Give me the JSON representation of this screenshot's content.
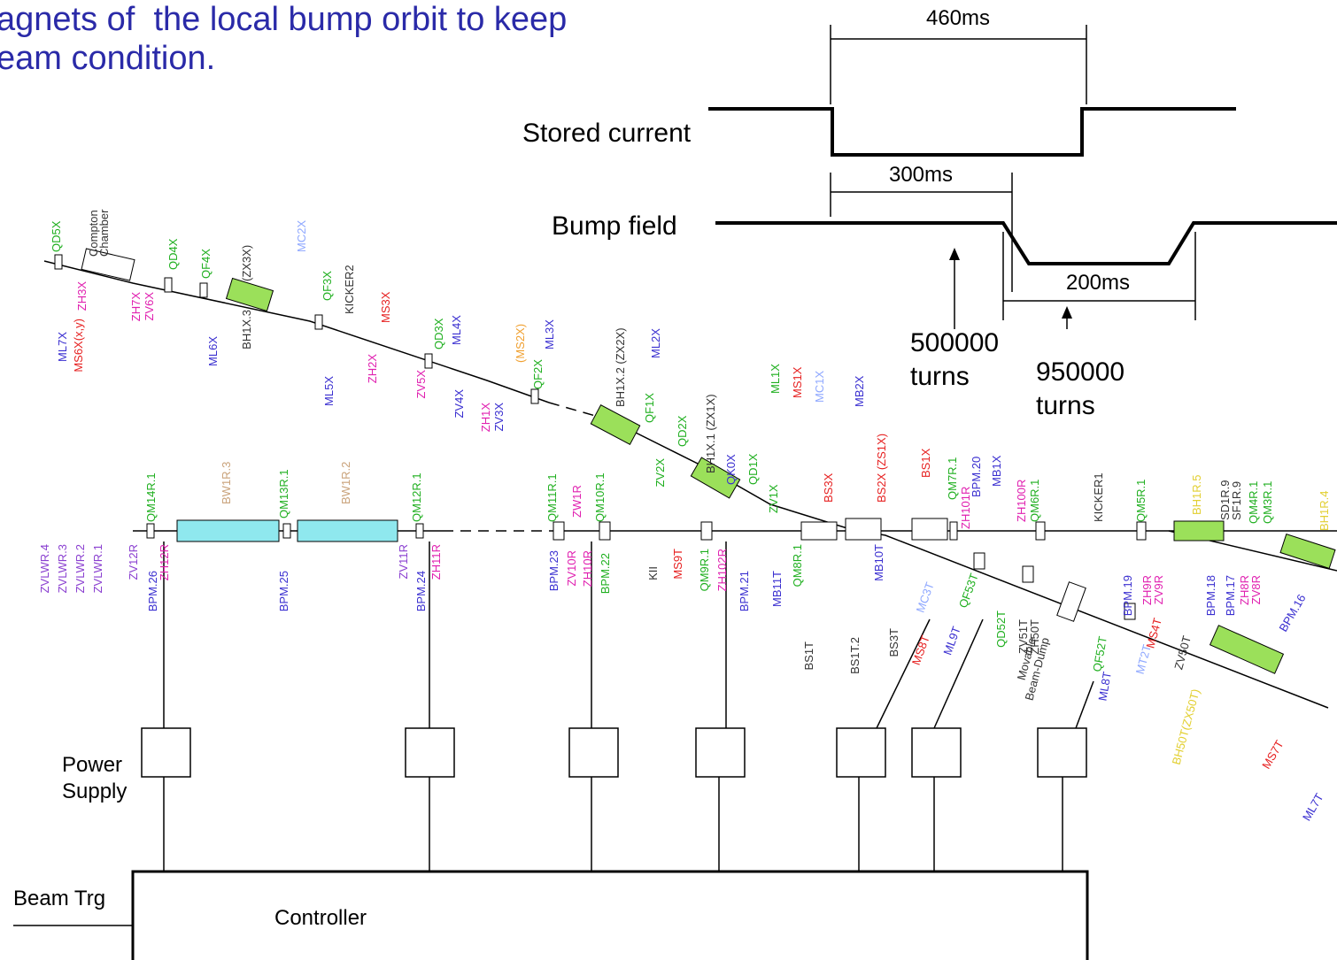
{
  "header": {
    "line1": "agnets of  the local bump orbit to keep",
    "line2": "eam condition."
  },
  "timing": {
    "stored_current": "Stored current",
    "bump_field": "Bump field",
    "t460": "460ms",
    "t300": "300ms",
    "t200": "200ms",
    "turns1": [
      "500000",
      "turns"
    ],
    "turns2": [
      "950000",
      "turns"
    ]
  },
  "bottom": {
    "power_supply": [
      "Power",
      "Supply"
    ],
    "beam_trg": "Beam Trg",
    "controller": "Controller"
  },
  "labels": [
    "QD5X",
    "Compton",
    "Chamber",
    "ML7X",
    "ZH3X",
    "MS6X(x,y)",
    "ZH7X",
    "ZV6X",
    "QD4X",
    "QF4X",
    "BH1X.3",
    "(ZX3X)",
    "ML6X",
    "MC2X",
    "QF3X",
    "KICKER2",
    "MS3X",
    "ML5X",
    "ZH2X",
    "QD3X",
    "ML4X",
    "ZV5X",
    "ZV4X",
    "(MS2X)",
    "ML3X",
    "QF2X",
    "ZH1X",
    "ZV3X",
    "BH1X.2 (ZX2X)",
    "QF1X",
    "ML2X",
    "QD2X",
    "BH1X.1 (ZX1X)",
    "ZV2X",
    "QK0X",
    "QD1X",
    "ML1X",
    "MS1X",
    "MC1X",
    "ZV1X",
    "BS3X",
    "MB2X",
    "BS2X (ZS1X)",
    "BS1X",
    "QM7R.1",
    "ZH101R",
    "BPM.20",
    "MB1X",
    "ZH100R",
    "QM6R.1",
    "KICKER1",
    "QM5R.1",
    "BH1R.5",
    "SD1R.9",
    "SF1R.9",
    "QM4R.1",
    "QM3R.1",
    "BH1R.4",
    "ZVLWR.4",
    "ZVLWR.3",
    "ZVLWR.2",
    "ZVLWR.1",
    "QM14R.1",
    "ZV12R",
    "BPM.26",
    "ZH12R",
    "BW1R.3",
    "QM13R.1",
    "BPM.25",
    "BW1R.2",
    "QM12R.1",
    "ZV11R",
    "BPM.24",
    "ZH11R",
    "QM11R.1",
    "ZW1R",
    "QM10R.1",
    "BPM.23",
    "ZV10R",
    "ZH10R",
    "BPM.22",
    "KII",
    "MS9T",
    "QM9R.1",
    "ZH102R",
    "BPM.21",
    "MB11T",
    "QM8R.1",
    "BS1T",
    "BS1T.2",
    "MB10T",
    "BS3T",
    "MC3T",
    "MS8T",
    "ML9T",
    "QF53T",
    "QD52T",
    "ZV51T",
    "ZH50T",
    "Movable",
    "Beam-Dump",
    "BPM.19",
    "ZH9R",
    "ZV9R",
    "BPM.18",
    "BPM.17",
    "ZH8R",
    "ZV8R",
    "BPM.16",
    "QF52T",
    "ML8T",
    "MT2T",
    "MS4T",
    "ZV50T",
    "BH50T(ZX50T)",
    "MS7T",
    "ML7T"
  ]
}
